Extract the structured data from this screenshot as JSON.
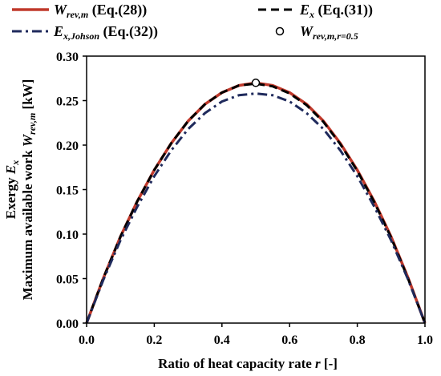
{
  "chart_data": {
    "type": "line",
    "xlabel": {
      "main": "Ratio of heat capacity rate ",
      "var": "r",
      "unit": " [-]"
    },
    "ylabel": {
      "line1_main": "Exergy  ",
      "line1_var": "E",
      "line1_sub": "x",
      "line2_main": "Maximum available work ",
      "line2_var": "W",
      "line2_sub": "rev,m",
      "line2_unit": " [kW]"
    },
    "xlim": [
      0,
      1.0
    ],
    "ylim": [
      0,
      0.3
    ],
    "x_ticks": [
      "0.0",
      "0.2",
      "0.4",
      "0.6",
      "0.8",
      "1.0"
    ],
    "y_ticks": [
      "0.00",
      "0.05",
      "0.10",
      "0.15",
      "0.20",
      "0.25",
      "0.30"
    ],
    "grid": false,
    "legend_position": "top",
    "series": [
      {
        "name": "W_rev,m (Eq.(28))",
        "label": {
          "main": "W",
          "sub": "rev,m",
          "rest": " (Eq.(28))"
        },
        "style": "solid",
        "color": "#c0392b",
        "x": [
          0,
          0.05,
          0.1,
          0.15,
          0.2,
          0.25,
          0.3,
          0.35,
          0.4,
          0.45,
          0.5,
          0.55,
          0.6,
          0.65,
          0.7,
          0.75,
          0.8,
          0.85,
          0.9,
          0.95,
          1.0
        ],
        "y": [
          0,
          0.051,
          0.097,
          0.137,
          0.172,
          0.202,
          0.227,
          0.246,
          0.259,
          0.267,
          0.27,
          0.267,
          0.259,
          0.246,
          0.227,
          0.202,
          0.172,
          0.137,
          0.097,
          0.051,
          0
        ]
      },
      {
        "name": "E_x (Eq.(31))",
        "label": {
          "main": "E",
          "sub": "x",
          "rest": " (Eq.(31))"
        },
        "style": "dash",
        "color": "#000000",
        "x": [
          0,
          0.05,
          0.1,
          0.15,
          0.2,
          0.25,
          0.3,
          0.35,
          0.4,
          0.45,
          0.5,
          0.55,
          0.6,
          0.65,
          0.7,
          0.75,
          0.8,
          0.85,
          0.9,
          0.95,
          1.0
        ],
        "y": [
          0,
          0.051,
          0.097,
          0.137,
          0.172,
          0.202,
          0.227,
          0.246,
          0.259,
          0.267,
          0.269,
          0.266,
          0.258,
          0.245,
          0.226,
          0.201,
          0.171,
          0.136,
          0.096,
          0.05,
          0
        ]
      },
      {
        "name": "E_x,Johson (Eq.(32))",
        "label": {
          "main": "E",
          "sub": "x,Johson",
          "rest": " (Eq.(32))"
        },
        "style": "dashdot",
        "color": "#1f2a5c",
        "x": [
          0,
          0.05,
          0.1,
          0.15,
          0.2,
          0.25,
          0.3,
          0.35,
          0.4,
          0.45,
          0.5,
          0.55,
          0.6,
          0.65,
          0.7,
          0.75,
          0.8,
          0.85,
          0.9,
          0.95,
          1.0
        ],
        "y": [
          0,
          0.049,
          0.093,
          0.131,
          0.165,
          0.194,
          0.218,
          0.236,
          0.249,
          0.256,
          0.258,
          0.256,
          0.249,
          0.236,
          0.218,
          0.194,
          0.165,
          0.131,
          0.093,
          0.049,
          0
        ]
      }
    ],
    "marker": {
      "name": "W_rev,m,r=0.5",
      "label": {
        "main": "W",
        "sub": "rev,m,r=0.5"
      },
      "x": 0.5,
      "y": 0.27
    }
  }
}
